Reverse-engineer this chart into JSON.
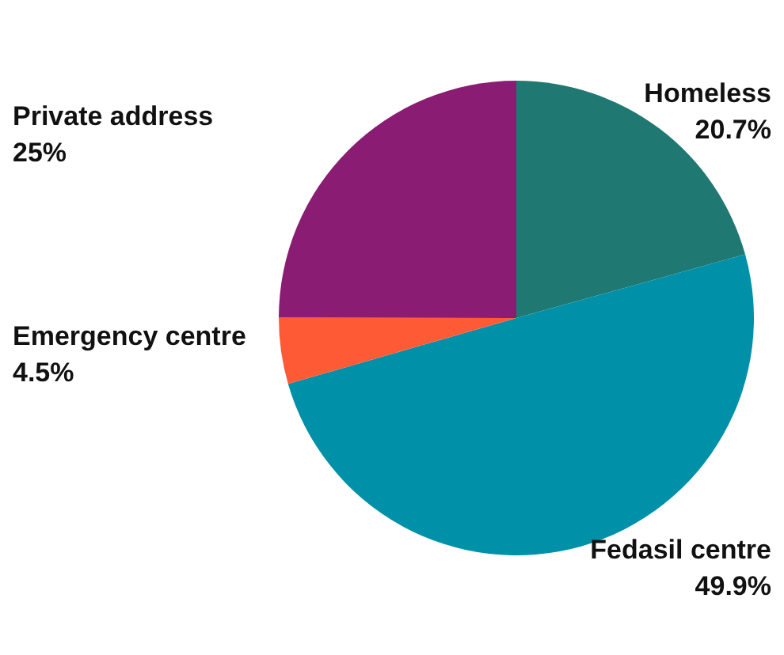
{
  "chart_data": {
    "type": "pie",
    "categories": [
      "Homeless",
      "Fedasil centre",
      "Emergency centre",
      "Private address"
    ],
    "values": [
      20.7,
      49.9,
      4.5,
      25
    ],
    "value_labels": [
      "20.7%",
      "49.9%",
      "4.5%",
      "25%"
    ],
    "colors": [
      "#1f7872",
      "#0090a8",
      "#ff5a36",
      "#8a1c73"
    ]
  }
}
